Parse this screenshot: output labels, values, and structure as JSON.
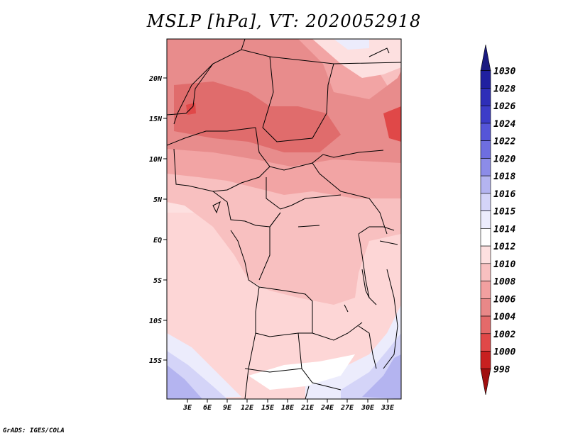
{
  "title": "MSLP [hPa], VT: 2020052918",
  "footer": "GrADS: IGES/COLA",
  "map": {
    "lat_labels": [
      "20N",
      "15N",
      "10N",
      "5N",
      "EQ",
      "5S",
      "10S",
      "15S"
    ],
    "lon_labels": [
      "3E",
      "6E",
      "9E",
      "12E",
      "15E",
      "18E",
      "21E",
      "24E",
      "27E",
      "30E",
      "33E"
    ]
  },
  "colorbar": {
    "levels": [
      "1030",
      "1028",
      "1026",
      "1024",
      "1022",
      "1020",
      "1018",
      "1016",
      "1015",
      "1014",
      "1012",
      "1010",
      "1008",
      "1006",
      "1004",
      "1002",
      "1000",
      "998"
    ],
    "colors": [
      "#1a1a80",
      "#2020a0",
      "#2e2eb8",
      "#3c3cc8",
      "#5555d8",
      "#6e6ee0",
      "#8c8ce8",
      "#b4b4f0",
      "#d4d4f8",
      "#ececfc",
      "#ffffff",
      "#fde0e0",
      "#f8c0c0",
      "#f2a0a0",
      "#e88888",
      "#e46a6a",
      "#e04848",
      "#c82020",
      "#a01010"
    ]
  }
}
